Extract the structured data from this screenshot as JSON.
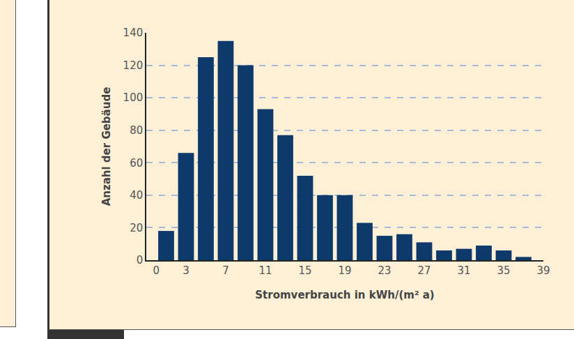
{
  "chart_data": {
    "type": "histogram",
    "x_label": "Stromverbrauch in kWh/(m² a)",
    "y_label": "Anzahl der Gebäude",
    "bins": [
      0,
      2,
      4,
      6,
      8,
      10,
      12,
      14,
      16,
      18,
      20,
      22,
      24,
      26,
      28,
      30,
      32,
      34,
      36,
      38
    ],
    "values": [
      18,
      66,
      125,
      135,
      120,
      93,
      77,
      52,
      40,
      40,
      23,
      15,
      16,
      11,
      6,
      7,
      9,
      6,
      2
    ],
    "color": "#0d3a6b",
    "xlim": [
      -1,
      39
    ],
    "xticks": [
      0,
      3,
      7,
      11,
      15,
      19,
      23,
      27,
      31,
      35,
      39
    ],
    "ylim": [
      0,
      140
    ],
    "yticks": [
      0,
      20,
      40,
      60,
      80,
      100,
      120,
      140
    ],
    "grid": true
  }
}
